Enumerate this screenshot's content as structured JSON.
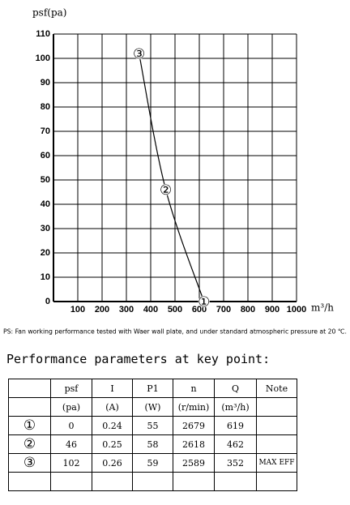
{
  "chart_data": {
    "type": "line",
    "y_label": "psf(pa)",
    "x_label": "m³/h",
    "note": "PS: Fan working performance tested with Waer wall plate, and under standard atmospheric pressure at 20 ℃.",
    "xlim": [
      0,
      1000
    ],
    "xticks": [
      100,
      200,
      300,
      400,
      500,
      600,
      700,
      800,
      900,
      1000
    ],
    "ylim": [
      0,
      110
    ],
    "yticks": [
      0,
      10,
      20,
      30,
      40,
      50,
      60,
      70,
      80,
      90,
      100,
      110
    ],
    "grid": true,
    "series": [
      {
        "color": "#000000",
        "x": [
          352,
          462,
          619
        ],
        "values": [
          102,
          46,
          0
        ]
      }
    ],
    "point_labels": [
      "③",
      "②",
      "①"
    ]
  },
  "table": {
    "title": "Performance parameters at key point:",
    "header": [
      "psf",
      "I",
      "P1",
      "n",
      "Q",
      "Note"
    ],
    "units": [
      "(pa)",
      "(A)",
      "(W)",
      "(r/min)",
      "(m³/h)"
    ],
    "rows": [
      {
        "cells": [
          "①",
          "0",
          "0.24",
          "55",
          "2679",
          "619"
        ]
      },
      {
        "cells": [
          "②",
          "46",
          "0.25",
          "58",
          "2618",
          "462"
        ]
      },
      {
        "cells": [
          "③",
          "102",
          "0.26",
          "59",
          "2589",
          "352"
        ],
        "note": "MAX EFF"
      }
    ]
  }
}
